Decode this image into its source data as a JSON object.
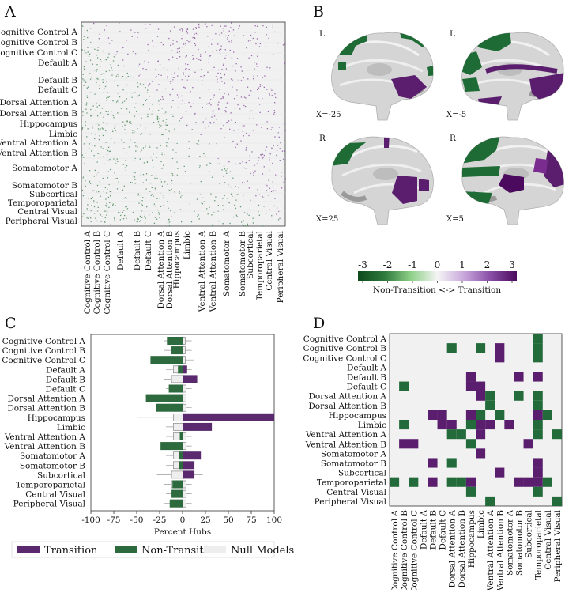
{
  "panels": {
    "a": {
      "letter": "A"
    },
    "b": {
      "letter": "B"
    },
    "c": {
      "letter": "C"
    },
    "d": {
      "letter": "D"
    }
  },
  "networks": [
    "Cognitive Control A",
    "Cognitive Control B",
    "Cognitive Control C",
    "Default A",
    "Default B",
    "Default C",
    "Dorsal Attention A",
    "Dorsal Attention B",
    "Hippocampus",
    "Limbic",
    "Ventral Attention A",
    "Ventral Attention B",
    "Somatomotor A",
    "Somatomotor B",
    "Subcortical",
    "Temporoparietal",
    "Central Visual",
    "Peripheral Visual"
  ],
  "brain": {
    "views": [
      {
        "hemi": "L",
        "coord": "X=-25"
      },
      {
        "hemi": "L",
        "coord": "X=-5"
      },
      {
        "hemi": "R",
        "coord": "X=25"
      },
      {
        "hemi": "R",
        "coord": "X=5"
      }
    ],
    "colorbar": {
      "ticks": [
        "-3",
        "-2",
        "-1",
        "0",
        "1",
        "2",
        "3"
      ],
      "label": "Non-Transition <-> Transition",
      "colors": [
        "#0d4a1c",
        "#2f7a3d",
        "#8ccf86",
        "#f4f4f4",
        "#c8a6db",
        "#8a4fa8",
        "#4b0a5e"
      ]
    }
  },
  "chart_data": {
    "type": "bar",
    "xlabel": "Percent Hubs",
    "xlim": [
      -100,
      100
    ],
    "xticks": [
      "-100",
      "-75",
      "-50",
      "-25",
      "0",
      "25",
      "50",
      "75",
      "100"
    ],
    "categories": [
      "Cognitive Control A",
      "Cognitive Control B",
      "Cognitive Control C",
      "Default A",
      "Default B",
      "Default C",
      "Dorsal Attention A",
      "Dorsal Attention B",
      "Hippocampus",
      "Limbic",
      "Ventral Attention A",
      "Ventral Attention B",
      "Somatomotor A",
      "Somatomotor B",
      "Subcortical",
      "Temporoparietal",
      "Central Visual",
      "Peripheral Visual"
    ],
    "series": [
      {
        "name": "Transition",
        "color": "#5b2a6e",
        "values": [
          0,
          0,
          0,
          5,
          16,
          0,
          0,
          0,
          100,
          32,
          0,
          0,
          20,
          13,
          13,
          0,
          0,
          0
        ]
      },
      {
        "name": "Non-Transition",
        "color": "#2d6a3e",
        "values": [
          -17,
          -12,
          -35,
          -5,
          0,
          -15,
          -40,
          -29,
          0,
          0,
          -3,
          -24,
          -4,
          -4,
          0,
          -11,
          -12,
          -14
        ]
      },
      {
        "name": "Null Models",
        "color": "#eeeeee",
        "box": [
          [
            -13,
            3,
            -20,
            10
          ],
          [
            -12,
            3,
            -20,
            10
          ],
          [
            -15,
            3,
            -22,
            12
          ],
          [
            -10,
            4,
            -18,
            10
          ],
          [
            -12,
            4,
            -20,
            12
          ],
          [
            -10,
            4,
            -18,
            10
          ],
          [
            -15,
            4,
            -25,
            12
          ],
          [
            -12,
            4,
            -22,
            10
          ],
          [
            -10,
            4,
            -50,
            12
          ],
          [
            -10,
            4,
            -18,
            10
          ],
          [
            -10,
            4,
            -18,
            10
          ],
          [
            -12,
            4,
            -22,
            10
          ],
          [
            -10,
            4,
            -18,
            10
          ],
          [
            -10,
            4,
            -18,
            12
          ],
          [
            -12,
            4,
            -28,
            22
          ],
          [
            -12,
            4,
            -20,
            10
          ],
          [
            -11,
            4,
            -18,
            10
          ],
          [
            -12,
            4,
            -20,
            10
          ]
        ]
      }
    ],
    "legend": {
      "placement": "bottom"
    }
  },
  "colors": {
    "purple": "#5b1e6e",
    "green": "#236b3a",
    "matrix_bg": "#f1f1f1"
  },
  "matrix_d": [
    {
      "r": 0,
      "c": 15,
      "v": "g"
    },
    {
      "r": 1,
      "c": 6,
      "v": "g"
    },
    {
      "r": 1,
      "c": 9,
      "v": "g"
    },
    {
      "r": 1,
      "c": 11,
      "v": "p"
    },
    {
      "r": 1,
      "c": 15,
      "v": "g"
    },
    {
      "r": 2,
      "c": 11,
      "v": "p"
    },
    {
      "r": 2,
      "c": 15,
      "v": "g"
    },
    {
      "r": 4,
      "c": 8,
      "v": "p"
    },
    {
      "r": 4,
      "c": 13,
      "v": "p"
    },
    {
      "r": 4,
      "c": 15,
      "v": "p"
    },
    {
      "r": 5,
      "c": 1,
      "v": "g"
    },
    {
      "r": 5,
      "c": 8,
      "v": "p"
    },
    {
      "r": 5,
      "c": 9,
      "v": "p"
    },
    {
      "r": 6,
      "c": 9,
      "v": "p"
    },
    {
      "r": 6,
      "c": 10,
      "v": "g"
    },
    {
      "r": 6,
      "c": 13,
      "v": "g"
    },
    {
      "r": 6,
      "c": 15,
      "v": "g"
    },
    {
      "r": 7,
      "c": 10,
      "v": "g"
    },
    {
      "r": 7,
      "c": 15,
      "v": "g"
    },
    {
      "r": 8,
      "c": 4,
      "v": "p"
    },
    {
      "r": 8,
      "c": 5,
      "v": "p"
    },
    {
      "r": 8,
      "c": 8,
      "v": "p"
    },
    {
      "r": 8,
      "c": 9,
      "v": "g"
    },
    {
      "r": 8,
      "c": 11,
      "v": "g"
    },
    {
      "r": 8,
      "c": 15,
      "v": "p"
    },
    {
      "r": 8,
      "c": 16,
      "v": "g"
    },
    {
      "r": 9,
      "c": 1,
      "v": "g"
    },
    {
      "r": 9,
      "c": 5,
      "v": "p"
    },
    {
      "r": 9,
      "c": 6,
      "v": "p"
    },
    {
      "r": 9,
      "c": 8,
      "v": "g"
    },
    {
      "r": 9,
      "c": 9,
      "v": "p"
    },
    {
      "r": 9,
      "c": 10,
      "v": "p"
    },
    {
      "r": 9,
      "c": 12,
      "v": "p"
    },
    {
      "r": 9,
      "c": 15,
      "v": "g"
    },
    {
      "r": 10,
      "c": 6,
      "v": "g"
    },
    {
      "r": 10,
      "c": 7,
      "v": "g"
    },
    {
      "r": 10,
      "c": 9,
      "v": "p"
    },
    {
      "r": 10,
      "c": 15,
      "v": "g"
    },
    {
      "r": 10,
      "c": 17,
      "v": "g"
    },
    {
      "r": 11,
      "c": 1,
      "v": "p"
    },
    {
      "r": 11,
      "c": 2,
      "v": "p"
    },
    {
      "r": 11,
      "c": 8,
      "v": "g"
    },
    {
      "r": 11,
      "c": 14,
      "v": "p"
    },
    {
      "r": 12,
      "c": 9,
      "v": "p"
    },
    {
      "r": 13,
      "c": 4,
      "v": "p"
    },
    {
      "r": 13,
      "c": 6,
      "v": "g"
    },
    {
      "r": 13,
      "c": 15,
      "v": "p"
    },
    {
      "r": 14,
      "c": 11,
      "v": "p"
    },
    {
      "r": 14,
      "c": 15,
      "v": "p"
    },
    {
      "r": 15,
      "c": 0,
      "v": "g"
    },
    {
      "r": 15,
      "c": 2,
      "v": "g"
    },
    {
      "r": 15,
      "c": 4,
      "v": "p"
    },
    {
      "r": 15,
      "c": 6,
      "v": "g"
    },
    {
      "r": 15,
      "c": 7,
      "v": "g"
    },
    {
      "r": 15,
      "c": 8,
      "v": "p"
    },
    {
      "r": 15,
      "c": 13,
      "v": "p"
    },
    {
      "r": 15,
      "c": 14,
      "v": "p"
    },
    {
      "r": 15,
      "c": 15,
      "v": "p"
    },
    {
      "r": 15,
      "c": 16,
      "v": "g"
    },
    {
      "r": 16,
      "c": 8,
      "v": "g"
    },
    {
      "r": 16,
      "c": 15,
      "v": "g"
    },
    {
      "r": 17,
      "c": 10,
      "v": "g"
    },
    {
      "r": 17,
      "c": 17,
      "v": "g"
    }
  ]
}
